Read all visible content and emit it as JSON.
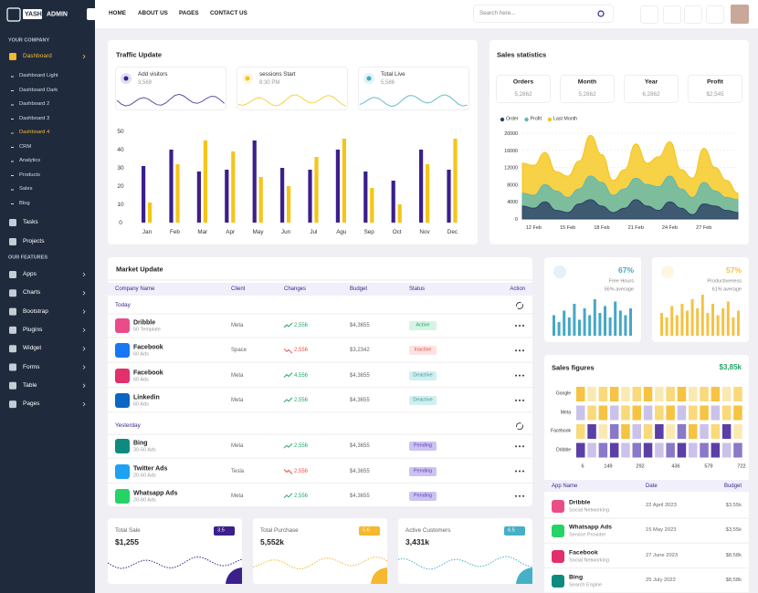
{
  "sidebar": {
    "logo": "YASH",
    "logo2": "ADMIN",
    "company": "YOUR COMPANY",
    "main": "Dashboard",
    "submenu": [
      "Dashboard Light",
      "Dashboard Dark",
      "Dashboard 2",
      "Dashboard 3",
      "Dashboard 4",
      "CRM",
      "Analytics",
      "Products",
      "Sales",
      "Blog"
    ],
    "active_sub": 4,
    "menu2": [
      "Tasks",
      "Projects"
    ],
    "features": "OUR FEATURES",
    "feature_menu": [
      "Apps",
      "Charts",
      "Bootstrap",
      "Plugins",
      "Widget",
      "Forms",
      "Table",
      "Pages"
    ]
  },
  "topbar": {
    "nav": [
      "HOME",
      "ABOUT US",
      "PAGES",
      "CONTACT US"
    ],
    "search": "Search here..."
  },
  "traffic": {
    "title": "Traffic Update",
    "stats": [
      {
        "label": "Add visitors",
        "value": "3,569",
        "color": "#3b1f8b"
      },
      {
        "label": "sessions Start",
        "value": "8:30 PM",
        "color": "#f5c518"
      },
      {
        "label": "Total Live",
        "value": "5,586",
        "color": "#3ea9c5"
      }
    ],
    "chart_data": {
      "type": "bar",
      "categories": [
        "Jan",
        "Feb",
        "Mar",
        "Apr",
        "May",
        "Jun",
        "Jul",
        "Agu",
        "Sep",
        "Oct",
        "Nov",
        "Dec"
      ],
      "series": [
        {
          "color": "#3b1f8b",
          "values": [
            31,
            40,
            28,
            29,
            45,
            30,
            29,
            40,
            28,
            23,
            40,
            29
          ]
        },
        {
          "color": "#f5c518",
          "values": [
            11,
            32,
            45,
            39,
            25,
            20,
            36,
            46,
            19,
            10,
            32,
            46
          ]
        }
      ],
      "ylim": [
        0,
        50
      ],
      "yticks": [
        0,
        10,
        20,
        30,
        40,
        50
      ]
    }
  },
  "sales_stats": {
    "title": "Sales statistics",
    "boxes": [
      {
        "label": "Orders",
        "value": "5,2862"
      },
      {
        "label": "Month",
        "value": "5,2862"
      },
      {
        "label": "Year",
        "value": "6,2862"
      },
      {
        "label": "Profit",
        "value": "$2,545"
      }
    ],
    "chart_data": {
      "type": "area",
      "categories": [
        null,
        "12 Feb",
        null,
        null,
        "15 Feb",
        null,
        null,
        "18 Feb",
        null,
        null,
        "21 Feb",
        null,
        null,
        "24 Feb",
        null,
        null,
        "27 Feb",
        null,
        null,
        null
      ],
      "series": [
        {
          "name": "Order",
          "color": "#2d4166",
          "values": [
            3000,
            2500,
            4000,
            2000,
            1500,
            3500,
            4500,
            3000,
            1500,
            2500,
            4500,
            3000,
            2000,
            4000,
            2500,
            1000,
            3500,
            3000,
            2000,
            1500
          ]
        },
        {
          "name": "Profit",
          "color": "#5fb8b1",
          "values": [
            6000,
            5500,
            8000,
            6500,
            5000,
            7000,
            10000,
            8500,
            5500,
            7000,
            9500,
            8000,
            7500,
            10000,
            7000,
            5000,
            8500,
            6500,
            5000,
            4500
          ]
        },
        {
          "name": "Last Month",
          "color": "#f5c518",
          "values": [
            13000,
            12500,
            15500,
            11000,
            10000,
            13500,
            19500,
            15000,
            9000,
            11500,
            17500,
            13000,
            14500,
            18000,
            11500,
            9500,
            16500,
            12000,
            9000,
            6000
          ]
        }
      ],
      "ylim": [
        0,
        20000
      ],
      "yticks": [
        0,
        4000,
        8000,
        12000,
        16000,
        20000
      ]
    }
  },
  "market": {
    "title": "Market Update",
    "columns": [
      "Company Name",
      "Client",
      "Changes",
      "Budget",
      "Status",
      "Action"
    ],
    "groups": [
      {
        "label": "Today",
        "rows": [
          {
            "name": "Dribble",
            "sub": "50 Template",
            "client": "Meta",
            "change": "2,556",
            "trend": "up",
            "budget": "$4,3655",
            "status": "Active",
            "icon": "#ea4c89"
          },
          {
            "name": "Facebook",
            "sub": "60 Ads",
            "client": "Space",
            "change": "2,556",
            "trend": "down",
            "budget": "$3,2342",
            "status": "Inactive",
            "icon": "#1877f2"
          },
          {
            "name": "Facebook",
            "sub": "60 Ads",
            "client": "Meta",
            "change": "4,556",
            "trend": "up",
            "budget": "$4,3655",
            "status": "Deactive",
            "icon": "#e1306c"
          },
          {
            "name": "Linkedin",
            "sub": "60 Ads",
            "client": "Meta",
            "change": "2,556",
            "trend": "up",
            "budget": "$4,3655",
            "status": "Deactive",
            "icon": "#0a66c2"
          }
        ]
      },
      {
        "label": "Yesterday",
        "rows": [
          {
            "name": "Bing",
            "sub": "30-50 Ads",
            "client": "Meta",
            "change": "2,556",
            "trend": "up",
            "budget": "$4,3655",
            "status": "Pending",
            "icon": "#0f8a7e"
          },
          {
            "name": "Twitter Ads",
            "sub": "20-60 Ads",
            "client": "Tesla",
            "change": "2,556",
            "trend": "down",
            "budget": "$4,3655",
            "status": "Pending",
            "icon": "#1da1f2"
          },
          {
            "name": "Whatsapp Ads",
            "sub": "20-60 Ads",
            "client": "Meta",
            "change": "2,556",
            "trend": "up",
            "budget": "$4,3655",
            "status": "Pending",
            "icon": "#25d366"
          }
        ]
      }
    ]
  },
  "kpis": [
    {
      "value": "67%",
      "label": "Free Hours",
      "note": "56% average",
      "color": "#45a7c6",
      "bars": [
        45,
        30,
        55,
        40,
        70,
        35,
        60,
        45,
        80,
        50,
        65,
        40,
        75,
        55,
        45,
        60
      ]
    },
    {
      "value": "57%",
      "label": "Productiveness",
      "note": "61% average",
      "color": "#f5c244",
      "bars": [
        50,
        40,
        65,
        45,
        70,
        55,
        80,
        60,
        90,
        50,
        70,
        45,
        60,
        75,
        40,
        55
      ]
    }
  ],
  "sales_figures": {
    "title": "Sales figures",
    "total": "$3,85k",
    "rows": [
      "Google",
      "Meta",
      "Facebook",
      "Dribble"
    ],
    "xlabels": [
      6,
      149,
      292,
      436,
      579,
      722
    ],
    "columns": [
      "App Name",
      "Date",
      "Budget"
    ],
    "apps": [
      {
        "name": "Dribble",
        "sub": "Social Networking",
        "date": "22 April 2023",
        "budget": "$3,55k",
        "icon": "#ea4c89"
      },
      {
        "name": "Whatsapp Ads",
        "sub": "Service Provider",
        "date": "15 May 2023",
        "budget": "$3,55k",
        "icon": "#25d366"
      },
      {
        "name": "Facebook",
        "sub": "Social Networking",
        "date": "27 June 2023",
        "budget": "$8,58k",
        "icon": "#e1306c"
      },
      {
        "name": "Bing",
        "sub": "Search Engine",
        "date": "25 July 2022",
        "budget": "$8,58k",
        "icon": "#0f8a7e"
      }
    ]
  },
  "totals": [
    {
      "label": "Total Sale",
      "value": "$1,255",
      "badge": 3.5,
      "color": "#3b1f8b"
    },
    {
      "label": "Total Purchase",
      "value": "5,552k",
      "badge": 5.6,
      "color": "#f5b82e"
    },
    {
      "label": "Active Customers",
      "value": "3,431k",
      "badge": 6.5,
      "color": "#45b0c6"
    }
  ]
}
